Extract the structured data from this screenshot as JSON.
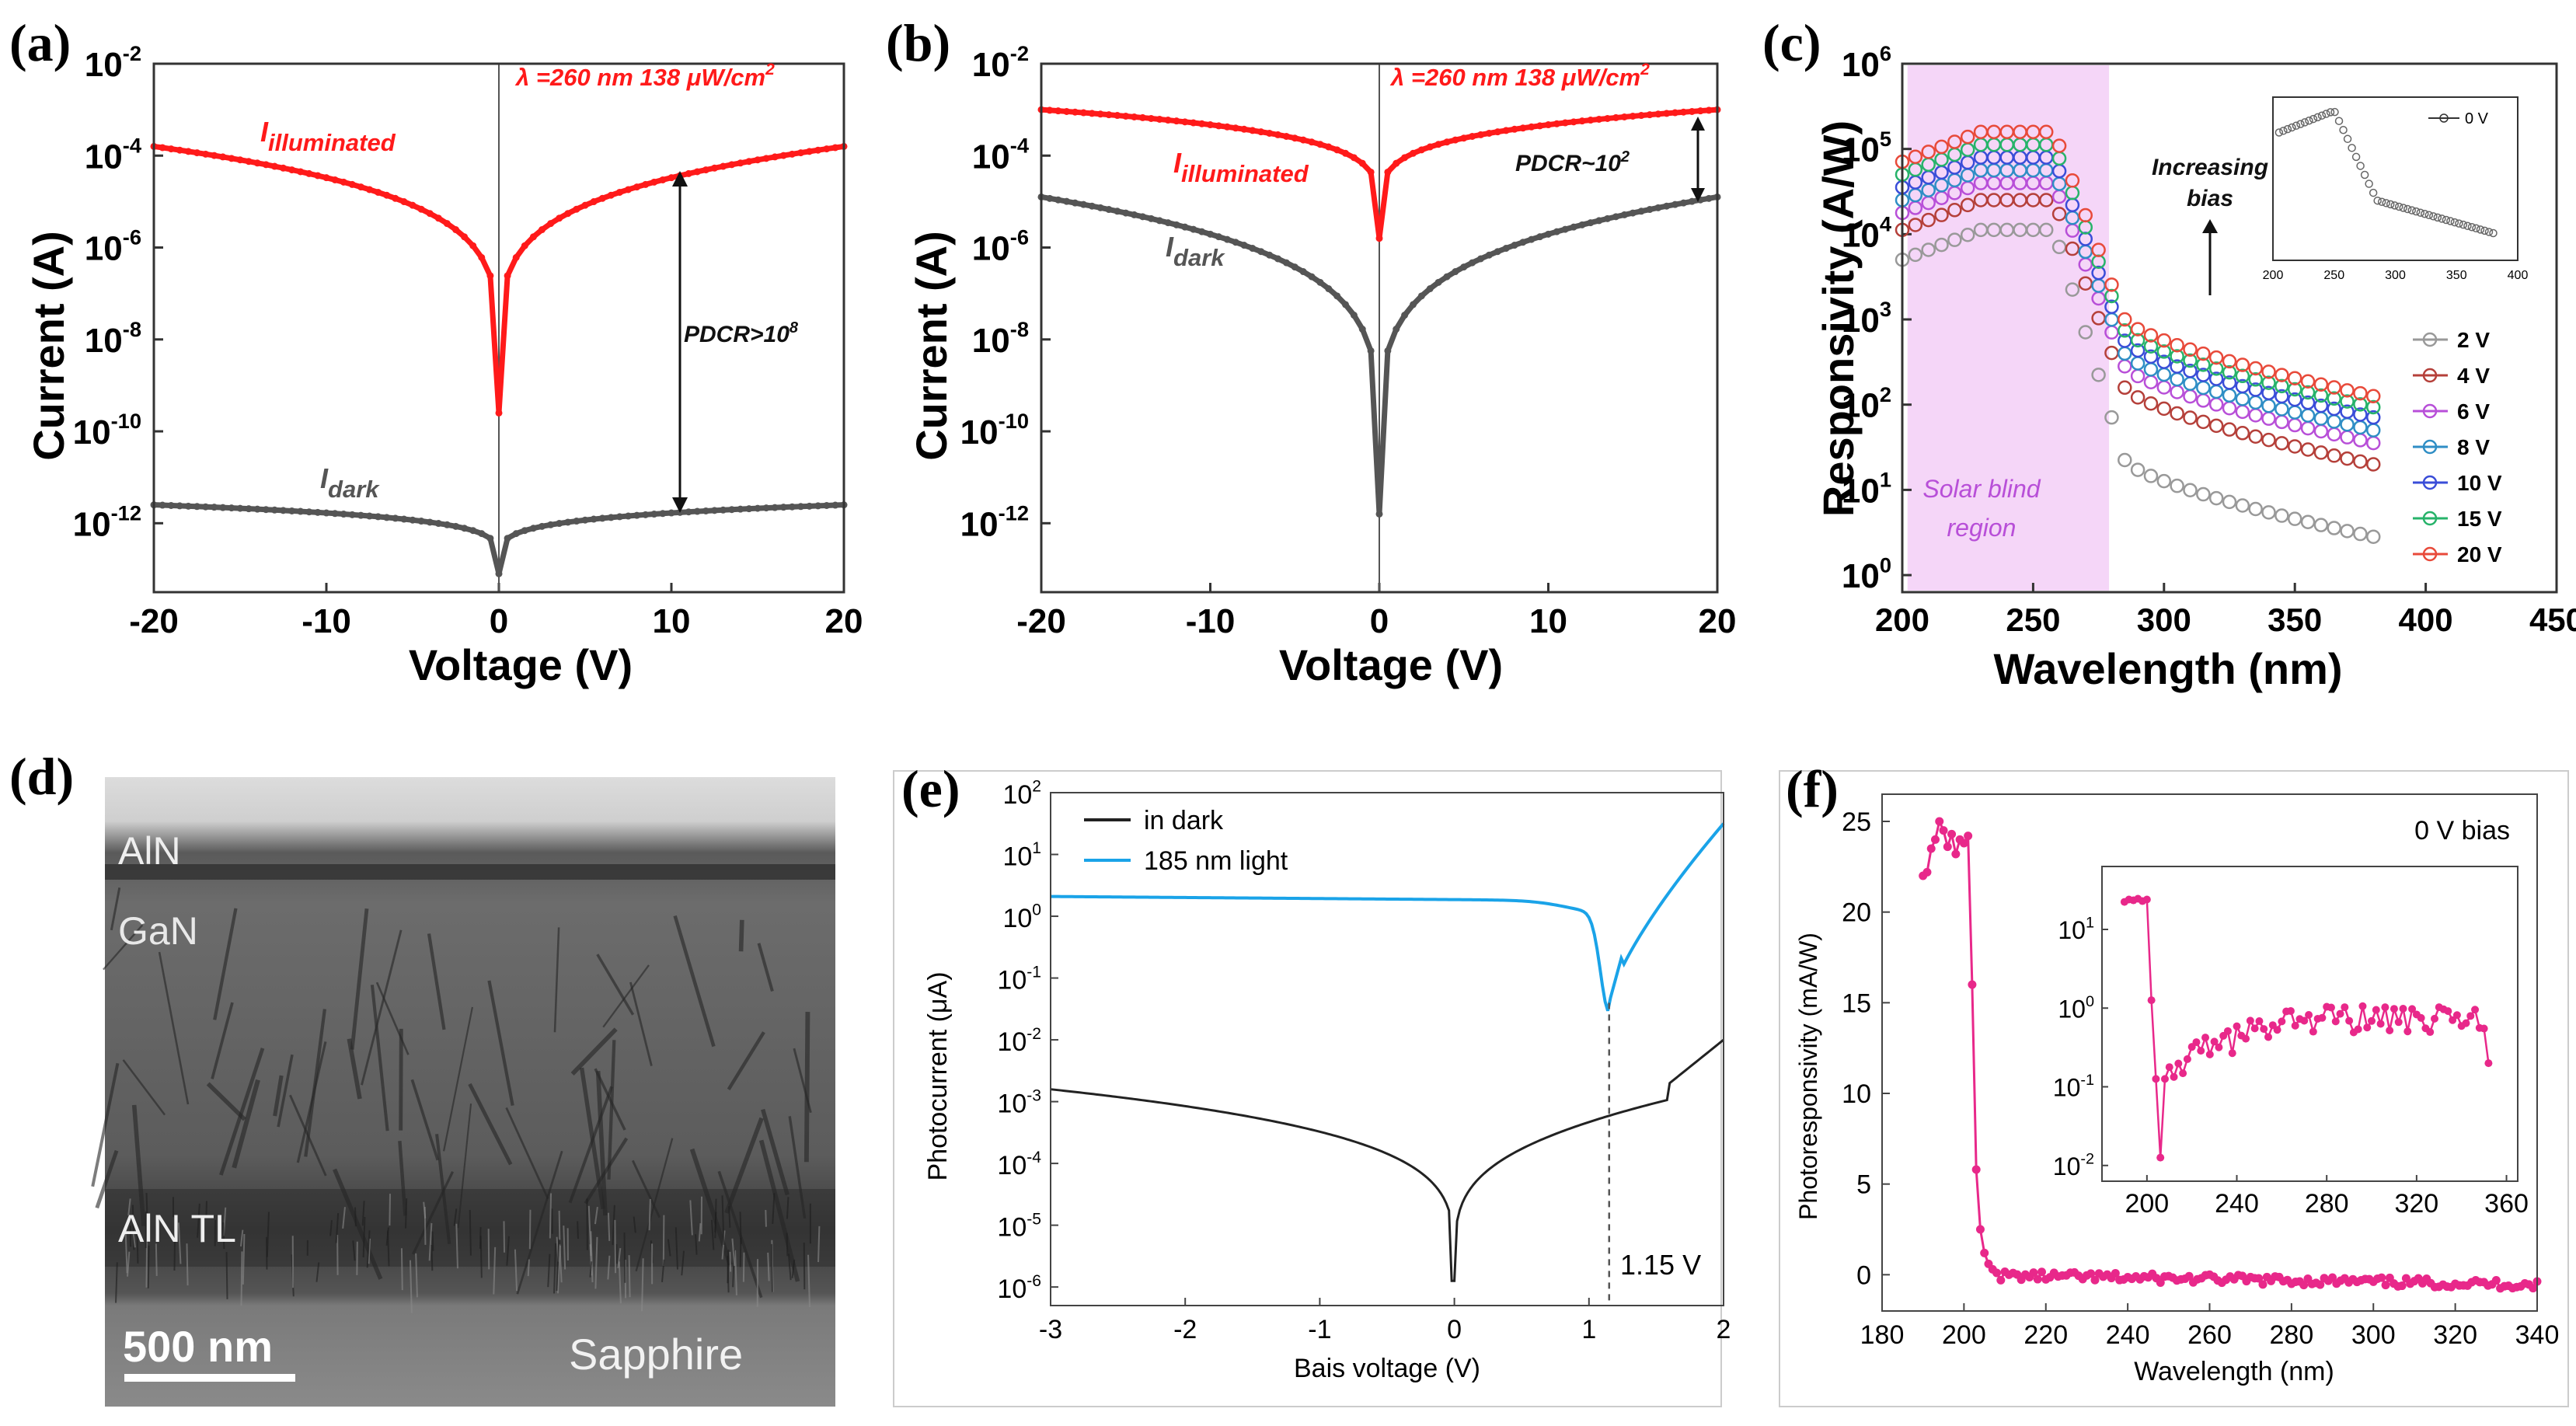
{
  "panels": {
    "a": {
      "label": "(a)"
    },
    "b": {
      "label": "(b)"
    },
    "c": {
      "label": "(c)"
    },
    "d": {
      "label": "(d)"
    },
    "e": {
      "label": "(e)"
    },
    "f": {
      "label": "(f)"
    }
  },
  "tem": {
    "layers": [
      "AlN",
      "GaN",
      "AlN TL",
      "Sapphire"
    ],
    "scale_bar": "500 nm"
  },
  "chart_data": [
    {
      "id": "a",
      "type": "line",
      "xlabel": "Voltage (V)",
      "ylabel": "Current (A)",
      "xlim": [
        -20,
        20
      ],
      "xticks": [
        "-20",
        "-10",
        "0",
        "10",
        "20"
      ],
      "ylog": true,
      "ylim_exp": [
        -13.5,
        -2
      ],
      "yticks": [
        {
          "base": "10",
          "exp": "-12"
        },
        {
          "base": "10",
          "exp": "-10"
        },
        {
          "base": "10",
          "exp": "-8"
        },
        {
          "base": "10",
          "exp": "-6"
        },
        {
          "base": "10",
          "exp": "-4"
        },
        {
          "base": "10",
          "exp": "-2"
        }
      ],
      "series": [
        {
          "name": "I illuminated",
          "color": "#ff1a1a",
          "edge": -3.8,
          "zero": -9.6
        },
        {
          "name": "I dark",
          "color": "#555555",
          "edge": -11.6,
          "zero": -13.1
        }
      ],
      "annotations": {
        "wavelength": "λ =260 nm 138 μW/cm",
        "power_exp": "2",
        "illum_main": "I",
        "illum_sub": "illuminated",
        "dark_main": "I",
        "dark_sub": "dark",
        "pdcr": "PDCR>10",
        "pdcr_exp": "8"
      }
    },
    {
      "id": "b",
      "type": "line",
      "xlabel": "Voltage (V)",
      "ylabel": "Current (A)",
      "xlim": [
        -20,
        20
      ],
      "xticks": [
        "-20",
        "-10",
        "0",
        "10",
        "20"
      ],
      "ylog": true,
      "ylim_exp": [
        -13.5,
        -2
      ],
      "yticks": [
        {
          "base": "10",
          "exp": "-12"
        },
        {
          "base": "10",
          "exp": "-10"
        },
        {
          "base": "10",
          "exp": "-8"
        },
        {
          "base": "10",
          "exp": "-6"
        },
        {
          "base": "10",
          "exp": "-4"
        },
        {
          "base": "10",
          "exp": "-2"
        }
      ],
      "series": [
        {
          "name": "I illuminated",
          "color": "#ff1a1a",
          "edge": -3.0,
          "zero": -5.8
        },
        {
          "name": "I dark",
          "color": "#555555",
          "edge": -4.9,
          "zero": -11.8
        }
      ],
      "annotations": {
        "wavelength": "λ =260 nm 138 μW/cm",
        "power_exp": "2",
        "illum_main": "I",
        "illum_sub": "illuminated",
        "dark_main": "I",
        "dark_sub": "dark",
        "pdcr": "PDCR~10",
        "pdcr_exp": "2"
      }
    },
    {
      "id": "c",
      "type": "scatter",
      "xlabel": "Wavelength (nm)",
      "ylabel": "Responsivity (A/W)",
      "xlim": [
        200,
        450
      ],
      "xticks": [
        "200",
        "250",
        "300",
        "350",
        "400",
        "450"
      ],
      "ylog": true,
      "ylim_exp": [
        -0.2,
        6
      ],
      "yticks": [
        {
          "base": "10",
          "exp": "0"
        },
        {
          "base": "10",
          "exp": "1"
        },
        {
          "base": "10",
          "exp": "2"
        },
        {
          "base": "10",
          "exp": "3"
        },
        {
          "base": "10",
          "exp": "4"
        },
        {
          "base": "10",
          "exp": "5"
        },
        {
          "base": "10",
          "exp": "6"
        }
      ],
      "series": [
        {
          "name": "2 V",
          "color": "#999999",
          "plateau": 4.05,
          "tail": 0.45
        },
        {
          "name": "4 V",
          "color": "#b5403a",
          "plateau": 4.4,
          "tail": 1.3
        },
        {
          "name": "6 V",
          "color": "#b84fd8",
          "plateau": 4.6,
          "tail": 1.55
        },
        {
          "name": "8 V",
          "color": "#2f8ec5",
          "plateau": 4.75,
          "tail": 1.7
        },
        {
          "name": "10 V",
          "color": "#3a4dd8",
          "plateau": 4.9,
          "tail": 1.85
        },
        {
          "name": "15 V",
          "color": "#27b36a",
          "plateau": 5.05,
          "tail": 1.97
        },
        {
          "name": "20 V",
          "color": "#e84a3a",
          "plateau": 5.2,
          "tail": 2.1
        }
      ],
      "annotations": {
        "region": [
          "Solar blind",
          "region"
        ],
        "arrow_text": [
          "Increasing",
          "bias"
        ],
        "inset_legend": "0 V",
        "inset_xticks": [
          "200",
          "250",
          "300",
          "350",
          "400"
        ]
      }
    },
    {
      "id": "e",
      "type": "line",
      "xlabel": "Bais voltage (V)",
      "ylabel": "Photocurrent (μA)",
      "xlim": [
        -3,
        2
      ],
      "xticks": [
        "-3",
        "-2",
        "-1",
        "0",
        "1",
        "2"
      ],
      "ylog": true,
      "ylim_exp": [
        -6.3,
        2
      ],
      "yticks": [
        {
          "base": "10",
          "exp": "-6"
        },
        {
          "base": "10",
          "exp": "-5"
        },
        {
          "base": "10",
          "exp": "-4"
        },
        {
          "base": "10",
          "exp": "-3"
        },
        {
          "base": "10",
          "exp": "-2"
        },
        {
          "base": "10",
          "exp": "-1"
        },
        {
          "base": "10",
          "exp": "0"
        },
        {
          "base": "10",
          "exp": "1"
        },
        {
          "base": "10",
          "exp": "2"
        }
      ],
      "series": [
        {
          "name": "in dark",
          "color": "#222222"
        },
        {
          "name": "185 nm light",
          "color": "#1aa3e8"
        }
      ],
      "annotations": {
        "marker": "1.15 V",
        "marker_x": 1.15
      }
    },
    {
      "id": "f",
      "type": "scatter",
      "xlabel": "Wavelength (nm)",
      "ylabel": "Photoresponsivity (mA/W)",
      "xlim": [
        180,
        340
      ],
      "xticks": [
        "180",
        "200",
        "220",
        "240",
        "260",
        "280",
        "300",
        "320",
        "340"
      ],
      "ylim": [
        -2,
        26.5
      ],
      "yticks": [
        "0",
        "5",
        "10",
        "15",
        "20",
        "25"
      ],
      "series": [
        {
          "name": "0 V bias",
          "color": "#e8288a"
        }
      ],
      "annotations": {
        "bias": "0 V bias"
      },
      "inset": {
        "xticks": [
          "200",
          "240",
          "280",
          "320",
          "360"
        ],
        "yticks": [
          {
            "base": "10",
            "exp": "-2"
          },
          {
            "base": "10",
            "exp": "-1"
          },
          {
            "base": "10",
            "exp": "0"
          },
          {
            "base": "10",
            "exp": "1"
          }
        ]
      }
    }
  ]
}
